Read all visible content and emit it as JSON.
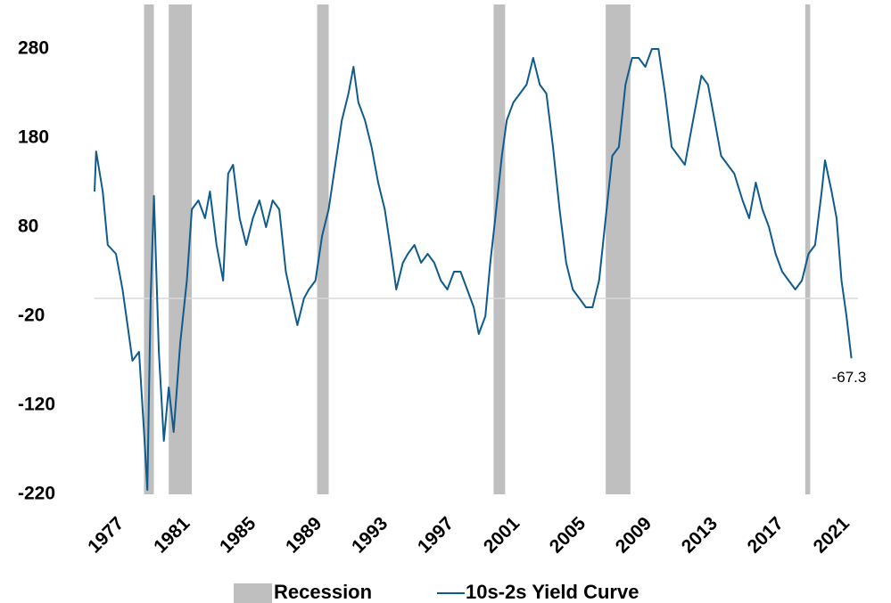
{
  "chart_data": {
    "type": "line",
    "x": [
      1977.0,
      1977.1,
      1977.5,
      1977.8,
      1978.3,
      1978.7,
      1979.0,
      1979.3,
      1979.7,
      1980.0,
      1980.2,
      1980.4,
      1980.6,
      1980.9,
      1981.2,
      1981.5,
      1981.8,
      1982.2,
      1982.6,
      1982.9,
      1983.3,
      1983.7,
      1984.0,
      1984.4,
      1984.8,
      1985.1,
      1985.4,
      1985.8,
      1986.2,
      1986.6,
      1987.0,
      1987.4,
      1987.8,
      1988.2,
      1988.6,
      1989.0,
      1989.3,
      1989.7,
      1990.0,
      1990.4,
      1990.8,
      1991.2,
      1991.6,
      1992.0,
      1992.4,
      1992.7,
      1993.0,
      1993.4,
      1993.8,
      1994.2,
      1994.6,
      1995.0,
      1995.3,
      1995.7,
      1996.0,
      1996.4,
      1996.8,
      1997.2,
      1997.6,
      1998.0,
      1998.4,
      1998.8,
      1999.2,
      1999.6,
      2000.0,
      2000.3,
      2000.7,
      2001.0,
      2001.3,
      2001.7,
      2002.0,
      2002.4,
      2002.8,
      2003.2,
      2003.6,
      2004.0,
      2004.4,
      2004.8,
      2005.2,
      2005.6,
      2006.0,
      2006.4,
      2006.8,
      2007.2,
      2007.6,
      2008.0,
      2008.4,
      2008.8,
      2009.2,
      2009.6,
      2010.0,
      2010.4,
      2010.8,
      2011.2,
      2011.6,
      2012.0,
      2012.4,
      2012.8,
      2013.3,
      2013.8,
      2014.2,
      2014.6,
      2015.0,
      2015.4,
      2015.8,
      2016.3,
      2016.7,
      2017.1,
      2017.5,
      2017.9,
      2018.3,
      2018.7,
      2019.1,
      2019.5,
      2019.9,
      2020.3,
      2020.7,
      2021.1,
      2021.3,
      2021.7,
      2022.0,
      2022.3,
      2022.6,
      2022.9
    ],
    "series": [
      {
        "name": "10s-2s Yield Curve",
        "color": "#0f5b8c",
        "values": [
          120,
          165,
          120,
          60,
          50,
          10,
          -30,
          -70,
          -60,
          -150,
          -215,
          0,
          115,
          -60,
          -160,
          -100,
          -150,
          -50,
          20,
          100,
          110,
          90,
          120,
          60,
          20,
          140,
          150,
          90,
          60,
          90,
          110,
          80,
          110,
          100,
          30,
          -5,
          -30,
          0,
          10,
          20,
          70,
          100,
          150,
          200,
          230,
          260,
          220,
          200,
          170,
          130,
          100,
          50,
          10,
          40,
          50,
          60,
          40,
          50,
          40,
          20,
          10,
          30,
          30,
          10,
          -10,
          -40,
          -20,
          40,
          90,
          160,
          200,
          220,
          230,
          240,
          270,
          240,
          230,
          170,
          100,
          40,
          10,
          0,
          -10,
          -10,
          20,
          90,
          160,
          170,
          240,
          270,
          270,
          260,
          280,
          280,
          230,
          170,
          160,
          150,
          200,
          250,
          240,
          200,
          160,
          150,
          140,
          110,
          90,
          130,
          100,
          80,
          50,
          30,
          20,
          10,
          20,
          50,
          60,
          120,
          155,
          120,
          90,
          20,
          -20,
          -67.3
        ]
      }
    ],
    "recession": {
      "name": "Recession",
      "color": "#bfbfbf",
      "spans": [
        [
          1980.0,
          1980.6
        ],
        [
          1981.5,
          1982.9
        ],
        [
          1990.5,
          1991.2
        ],
        [
          2001.2,
          2001.9
        ],
        [
          2008.0,
          2009.5
        ],
        [
          2020.1,
          2020.4
        ]
      ]
    },
    "annotation": "-67.3",
    "xlim": [
      1977,
      2023.3
    ],
    "xticks": [
      1977,
      1981,
      1985,
      1989,
      1993,
      1997,
      2001,
      2005,
      2009,
      2013,
      2017,
      2021
    ],
    "ylim": [
      -220,
      330
    ],
    "yticks": [
      -220,
      -120,
      -20,
      80,
      180,
      280
    ],
    "zero_line": true
  }
}
